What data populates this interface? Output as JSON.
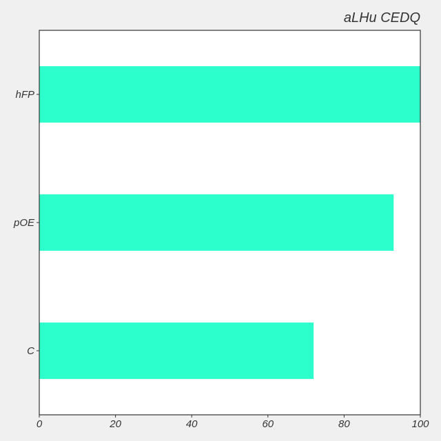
{
  "chart_data": {
    "type": "bar",
    "orientation": "horizontal",
    "title": "aLHu  CEDQ",
    "title_position": "top-right",
    "xlabel": "",
    "ylabel": "",
    "categories": [
      "C",
      "pOE",
      "hFP"
    ],
    "values": [
      72,
      93,
      100
    ],
    "xlim": [
      0,
      100
    ],
    "xticks": [
      0,
      20,
      40,
      60,
      80,
      100
    ],
    "grid": false,
    "legend": "none",
    "colors": {
      "bar": "#2dffcc",
      "plot_background": "#ffffff",
      "figure_background": "#f0f0f0",
      "axis": "#333333",
      "text": "#333333"
    }
  }
}
